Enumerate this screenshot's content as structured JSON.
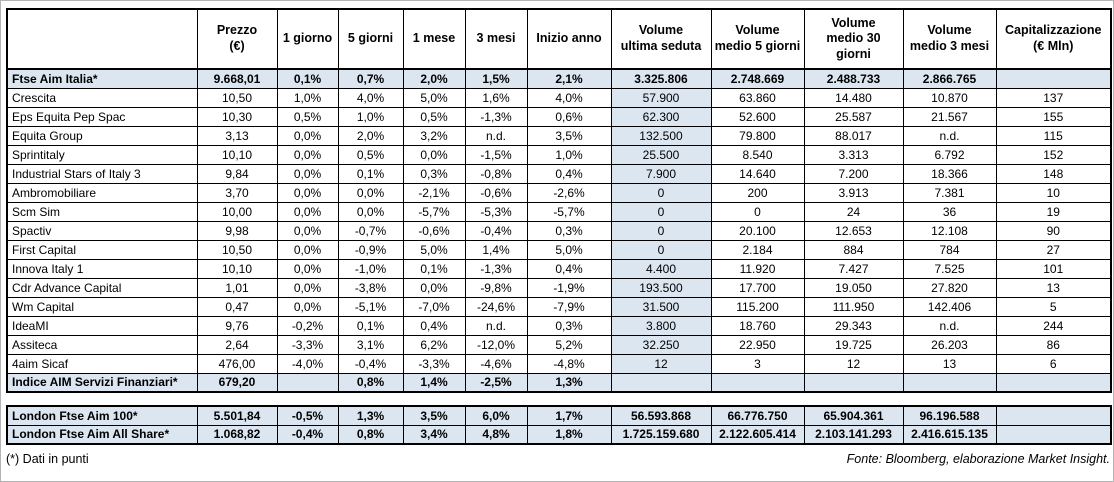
{
  "colors": {
    "row_highlight": "#dce6f1"
  },
  "main_table": {
    "columns": [
      {
        "id": "name",
        "label": ""
      },
      {
        "id": "prezzo",
        "label": "Prezzo\n(€)"
      },
      {
        "id": "1-giorno",
        "label": "1 giorno"
      },
      {
        "id": "5-giorni",
        "label": "5 giorni"
      },
      {
        "id": "1-mese",
        "label": "1 mese"
      },
      {
        "id": "3-mesi",
        "label": "3 mesi"
      },
      {
        "id": "inizio-anno",
        "label": "Inizio anno"
      },
      {
        "id": "volume-ultima-seduta",
        "label": "Volume\nultima seduta"
      },
      {
        "id": "volume-medio-5-giorni",
        "label": "Volume\nmedio 5 giorni"
      },
      {
        "id": "volume-medio-30-giorni",
        "label": "Volume\nmedio 30\ngiorni"
      },
      {
        "id": "volume-medio-3-mesi",
        "label": "Volume\nmedio 3 mesi"
      },
      {
        "id": "capitalizzazione",
        "label": "Capitalizzazione\n(€ Mln)"
      }
    ],
    "rows": [
      {
        "name": "Ftse Aim Italia*",
        "bold": true,
        "highlight": true,
        "cells": [
          "9.668,01",
          "0,1%",
          "0,7%",
          "2,0%",
          "1,5%",
          "2,1%",
          "3.325.806",
          "2.748.669",
          "2.488.733",
          "2.866.765",
          ""
        ]
      },
      {
        "name": "Crescita",
        "bold": false,
        "highlight": false,
        "cells": [
          "10,50",
          "1,0%",
          "4,0%",
          "5,0%",
          "1,6%",
          "4,0%",
          "57.900",
          "63.860",
          "14.480",
          "10.870",
          "137"
        ]
      },
      {
        "name": "Eps Equita Pep Spac",
        "bold": false,
        "highlight": false,
        "cells": [
          "10,30",
          "0,5%",
          "1,0%",
          "0,5%",
          "-1,3%",
          "0,6%",
          "62.300",
          "52.600",
          "25.587",
          "21.567",
          "155"
        ]
      },
      {
        "name": "Equita Group",
        "bold": false,
        "highlight": false,
        "cells": [
          "3,13",
          "0,0%",
          "2,0%",
          "3,2%",
          "n.d.",
          "3,5%",
          "132.500",
          "79.800",
          "88.017",
          "n.d.",
          "115"
        ]
      },
      {
        "name": "Sprintitaly",
        "bold": false,
        "highlight": false,
        "cells": [
          "10,10",
          "0,0%",
          "0,5%",
          "0,0%",
          "-1,5%",
          "1,0%",
          "25.500",
          "8.540",
          "3.313",
          "6.792",
          "152"
        ]
      },
      {
        "name": "Industrial Stars of Italy 3",
        "bold": false,
        "highlight": false,
        "cells": [
          "9,84",
          "0,0%",
          "0,1%",
          "0,3%",
          "-0,8%",
          "0,4%",
          "7.900",
          "14.640",
          "7.200",
          "18.366",
          "148"
        ]
      },
      {
        "name": "Ambromobiliare",
        "bold": false,
        "highlight": false,
        "cells": [
          "3,70",
          "0,0%",
          "0,0%",
          "-2,1%",
          "-0,6%",
          "-2,6%",
          "0",
          "200",
          "3.913",
          "7.381",
          "10"
        ]
      },
      {
        "name": "Scm Sim",
        "bold": false,
        "highlight": false,
        "cells": [
          "10,00",
          "0,0%",
          "0,0%",
          "-5,7%",
          "-5,3%",
          "-5,7%",
          "0",
          "0",
          "24",
          "36",
          "19"
        ]
      },
      {
        "name": "Spactiv",
        "bold": false,
        "highlight": false,
        "cells": [
          "9,98",
          "0,0%",
          "-0,7%",
          "-0,6%",
          "-0,4%",
          "0,3%",
          "0",
          "20.100",
          "12.653",
          "12.108",
          "90"
        ]
      },
      {
        "name": "First Capital",
        "bold": false,
        "highlight": false,
        "cells": [
          "10,50",
          "0,0%",
          "-0,9%",
          "5,0%",
          "1,4%",
          "5,0%",
          "0",
          "2.184",
          "884",
          "784",
          "27"
        ]
      },
      {
        "name": "Innova Italy 1",
        "bold": false,
        "highlight": false,
        "cells": [
          "10,10",
          "0,0%",
          "-1,0%",
          "0,1%",
          "-1,3%",
          "0,4%",
          "4.400",
          "11.920",
          "7.427",
          "7.525",
          "101"
        ]
      },
      {
        "name": "Cdr Advance Capital",
        "bold": false,
        "highlight": false,
        "cells": [
          "1,01",
          "0,0%",
          "-3,8%",
          "0,0%",
          "-9,8%",
          "-1,9%",
          "193.500",
          "17.700",
          "19.050",
          "27.820",
          "13"
        ]
      },
      {
        "name": "Wm Capital",
        "bold": false,
        "highlight": false,
        "cells": [
          "0,47",
          "0,0%",
          "-5,1%",
          "-7,0%",
          "-24,6%",
          "-7,9%",
          "31.500",
          "115.200",
          "111.950",
          "142.406",
          "5"
        ]
      },
      {
        "name": "IdeaMI",
        "bold": false,
        "highlight": false,
        "cells": [
          "9,76",
          "-0,2%",
          "0,1%",
          "0,4%",
          "n.d.",
          "0,3%",
          "3.800",
          "18.760",
          "29.343",
          "n.d.",
          "244"
        ]
      },
      {
        "name": "Assiteca",
        "bold": false,
        "highlight": false,
        "cells": [
          "2,64",
          "-3,3%",
          "3,1%",
          "6,2%",
          "-12,0%",
          "5,2%",
          "32.250",
          "22.950",
          "19.725",
          "26.203",
          "86"
        ]
      },
      {
        "name": "4aim Sicaf",
        "bold": false,
        "highlight": false,
        "cells": [
          "476,00",
          "-4,0%",
          "-0,4%",
          "-3,3%",
          "-4,6%",
          "-4,8%",
          "12",
          "3",
          "12",
          "13",
          "6"
        ]
      },
      {
        "name": "Indice AIM Servizi Finanziari*",
        "bold": true,
        "highlight": true,
        "cells": [
          "679,20",
          "",
          "0,8%",
          "1,4%",
          "-2,5%",
          "1,3%",
          "",
          "",
          "",
          "",
          ""
        ]
      }
    ]
  },
  "london_table": {
    "rows": [
      {
        "name": "London Ftse Aim 100*",
        "bold": true,
        "highlight": true,
        "cells": [
          "5.501,84",
          "-0,5%",
          "1,3%",
          "3,5%",
          "6,0%",
          "1,7%",
          "56.593.868",
          "66.776.750",
          "65.904.361",
          "96.196.588",
          ""
        ]
      },
      {
        "name": "London Ftse Aim All Share*",
        "bold": true,
        "highlight": true,
        "cells": [
          "1.068,82",
          "-0,4%",
          "0,8%",
          "3,4%",
          "4,8%",
          "1,8%",
          "1.725.159.680",
          "2.122.605.414",
          "2.103.141.293",
          "2.416.615.135",
          ""
        ]
      }
    ]
  },
  "footnote": "(*) Dati in punti",
  "source": "Fonte: Bloomberg, elaborazione Market Insight."
}
